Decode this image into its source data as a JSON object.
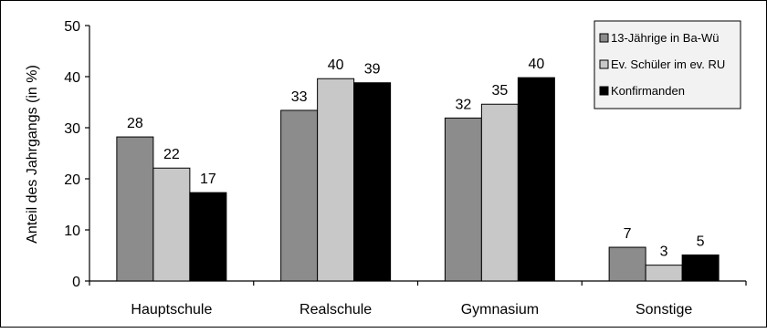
{
  "chart_data": {
    "type": "bar",
    "title": "",
    "xlabel": "",
    "ylabel": "Anteil des Jahrgangs (in %)",
    "ylim": [
      0,
      50
    ],
    "yticks": [
      "0",
      "10",
      "20",
      "30",
      "40",
      "50"
    ],
    "grid": false,
    "legend_position": "top-right",
    "categories": [
      "Hauptschule",
      "Realschule",
      "Gymnasium",
      "Sonstige"
    ],
    "series": [
      {
        "name": "13-Jährige in Ba-Wü",
        "color": "#8c8c8c",
        "values": [
          28.2,
          33.4,
          31.9,
          6.6
        ],
        "labels": [
          "28",
          "33",
          "32",
          "7"
        ]
      },
      {
        "name": "Ev. Schüler im ev. RU",
        "color": "#c8c8c8",
        "values": [
          22.1,
          39.6,
          34.6,
          3.1
        ],
        "labels": [
          "22",
          "40",
          "35",
          "3"
        ]
      },
      {
        "name": "Konfirmanden",
        "color": "#000000",
        "values": [
          17.3,
          38.8,
          39.8,
          5.1
        ],
        "labels": [
          "17",
          "39",
          "40",
          "5"
        ]
      }
    ]
  }
}
